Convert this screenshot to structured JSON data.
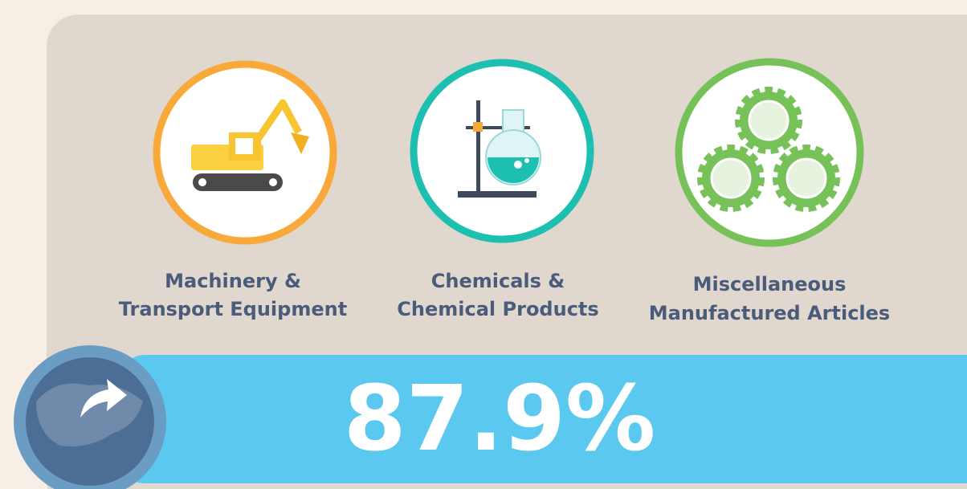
{
  "categories": [
    {
      "lines": [
        "Machinery &",
        "Transport Equipment"
      ]
    },
    {
      "lines": [
        "Chemicals &",
        "Chemical Products"
      ]
    },
    {
      "lines": [
        "Miscellaneous",
        "Manufactured Articles"
      ]
    }
  ],
  "share": "87.9%"
}
